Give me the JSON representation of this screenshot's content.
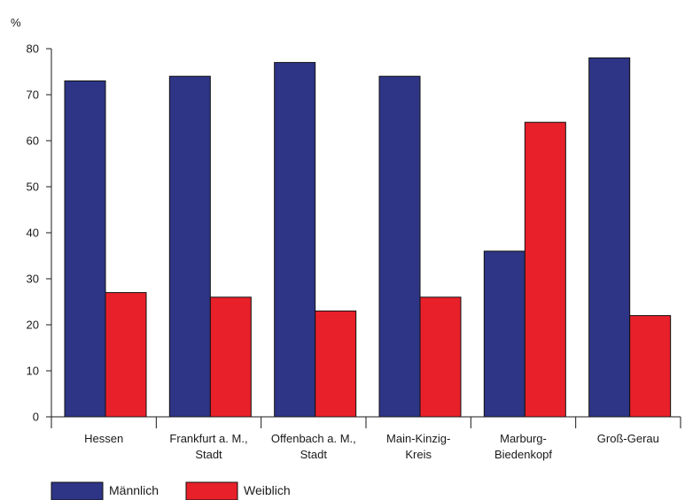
{
  "chart_data": {
    "type": "bar",
    "title": "",
    "xlabel": "",
    "ylabel": "%",
    "ylim": [
      0,
      80
    ],
    "yticks": [
      0,
      10,
      20,
      30,
      40,
      50,
      60,
      70,
      80
    ],
    "grid": false,
    "legend": "bottom-left",
    "categories": [
      [
        "Hessen"
      ],
      [
        "Frankfurt a. M.,",
        "Stadt"
      ],
      [
        "Offenbach a. M.,",
        "Stadt"
      ],
      [
        "Main-Kinzig-",
        "Kreis"
      ],
      [
        "Marburg-",
        "Biedenkopf"
      ],
      [
        "Groß-Gerau"
      ]
    ],
    "series": [
      {
        "name": "Männlich",
        "color": "#2e3586",
        "values": [
          73,
          74,
          77,
          74,
          36,
          78
        ]
      },
      {
        "name": "Weiblich",
        "color": "#e8202a",
        "values": [
          27,
          26,
          23,
          26,
          64,
          22
        ]
      }
    ]
  }
}
